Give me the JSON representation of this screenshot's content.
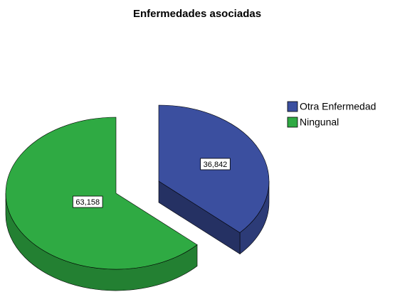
{
  "chart_data": {
    "type": "pie",
    "title": "Enfermedades asociadas",
    "categories": [
      "Otra Enfermedad",
      "Ningunal"
    ],
    "values": [
      36.842,
      63.158
    ],
    "value_labels": [
      "36,842",
      "63,158"
    ],
    "colors": [
      "#3b4f9f",
      "#2faa43"
    ],
    "legend": "right"
  }
}
